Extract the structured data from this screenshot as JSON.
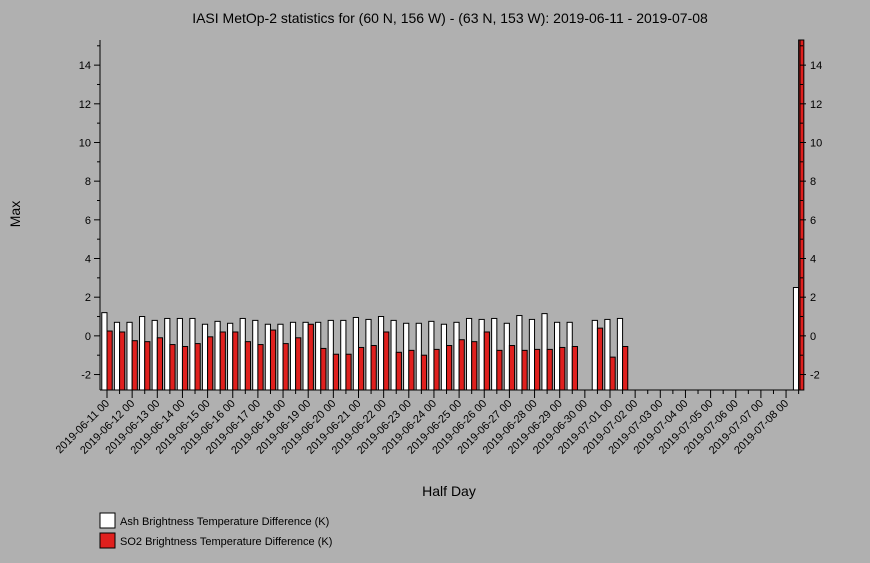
{
  "chart_data": {
    "type": "bar",
    "title": "IASI MetOp-2 statistics for (60 N, 156 W) - (63 N, 153 W): 2019-06-11 - 2019-07-08",
    "xlabel": "Half Day",
    "ylabel": "Max",
    "ylim": [
      -2.8,
      15.3
    ],
    "yticks": [
      -2,
      0,
      2,
      4,
      6,
      8,
      10,
      12,
      14
    ],
    "x_tick_labels": [
      "2019-06-11 00",
      "2019-06-12 00",
      "2019-06-13 00",
      "2019-06-14 00",
      "2019-06-15 00",
      "2019-06-16 00",
      "2019-06-17 00",
      "2019-06-18 00",
      "2019-06-19 00",
      "2019-06-20 00",
      "2019-06-21 00",
      "2019-06-22 00",
      "2019-06-23 00",
      "2019-06-24 00",
      "2019-06-25 00",
      "2019-06-26 00",
      "2019-06-27 00",
      "2019-06-28 00",
      "2019-06-29 00",
      "2019-06-30 00",
      "2019-07-01 00",
      "2019-07-02 00",
      "2019-07-03 00",
      "2019-07-04 00",
      "2019-07-05 00",
      "2019-07-06 00",
      "2019-07-07 00",
      "2019-07-08 00"
    ],
    "grid": false,
    "legend_position": "bottom-left",
    "series": [
      {
        "name": "Ash Brightness Temperature Difference (K)",
        "color": "#ffffff",
        "values": [
          1.2,
          0.7,
          0.7,
          1.0,
          0.8,
          0.9,
          0.9,
          0.9,
          0.6,
          0.75,
          0.65,
          0.9,
          0.8,
          0.6,
          0.6,
          0.7,
          0.7,
          0.7,
          0.8,
          0.8,
          0.95,
          0.85,
          1.0,
          0.8,
          0.65,
          0.65,
          0.75,
          0.6,
          0.7,
          0.9,
          0.85,
          0.9,
          0.65,
          1.05,
          0.85,
          1.15,
          0.7,
          0.7,
          null,
          0.8,
          0.85,
          0.9,
          null,
          null,
          null,
          null,
          null,
          null,
          null,
          null,
          null,
          null,
          null,
          null,
          null,
          2.5
        ]
      },
      {
        "name": "SO2 Brightness Temperature Difference (K)",
        "color": "#e0201e",
        "values": [
          0.25,
          0.2,
          -0.25,
          -0.3,
          -0.1,
          -0.45,
          -0.55,
          -0.4,
          -0.05,
          0.2,
          0.2,
          -0.3,
          -0.45,
          0.3,
          -0.4,
          -0.1,
          0.6,
          -0.65,
          -0.95,
          -0.95,
          -0.6,
          -0.5,
          0.2,
          -0.85,
          -0.75,
          -1.0,
          -0.7,
          -0.5,
          -0.2,
          -0.3,
          0.2,
          -0.75,
          -0.5,
          -0.75,
          -0.7,
          -0.7,
          -0.6,
          -0.55,
          null,
          0.4,
          -1.1,
          -0.55,
          null,
          null,
          null,
          null,
          null,
          null,
          null,
          null,
          null,
          null,
          null,
          null,
          null,
          15.3
        ]
      }
    ]
  }
}
